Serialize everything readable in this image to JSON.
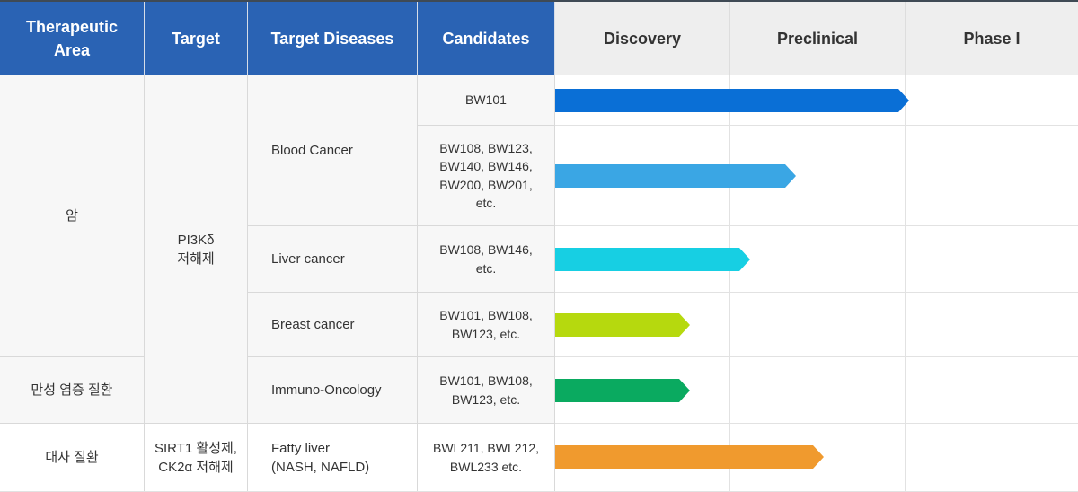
{
  "table": {
    "headers": {
      "area": "Therapeutic\nArea",
      "target": "Target",
      "diseases": "Target Diseases",
      "candidates": "Candidates",
      "discovery": "Discovery",
      "preclinical": "Preclinical",
      "phase1": "Phase I"
    },
    "areas": [
      "암",
      "만성 염증 질환",
      "대사 질환"
    ],
    "targets": [
      "PI3Kδ\n저해제",
      "SIRT1 활성제,\nCK2α 저해제"
    ],
    "rows": [
      {
        "disease": "Blood Cancer",
        "candidates": "BW101",
        "stage_progress": 1.0,
        "color": "#0a6fd6"
      },
      {
        "disease": "Blood Cancer",
        "candidates": "BW108, BW123,\nBW140, BW146,\nBW200, BW201,\netc.",
        "stage_progress": 0.68,
        "color": "#3aa6e4"
      },
      {
        "disease": "Liver cancer",
        "candidates": "BW108, BW146,\netc.",
        "stage_progress": 0.55,
        "color": "#17cfe3"
      },
      {
        "disease": "Breast cancer",
        "candidates": "BW101, BW108,\nBW123, etc.",
        "stage_progress": 0.38,
        "color": "#b6d90e"
      },
      {
        "disease": "Immuno-Oncology",
        "candidates": "BW101, BW108,\nBW123, etc.",
        "stage_progress": 0.38,
        "color": "#0aaa60"
      },
      {
        "disease": "Fatty liver\n(NASH, NAFLD)",
        "candidates": "BWL211, BWL212,\nBWL233 etc.",
        "stage_progress": 0.76,
        "color": "#f09a2e"
      }
    ]
  }
}
